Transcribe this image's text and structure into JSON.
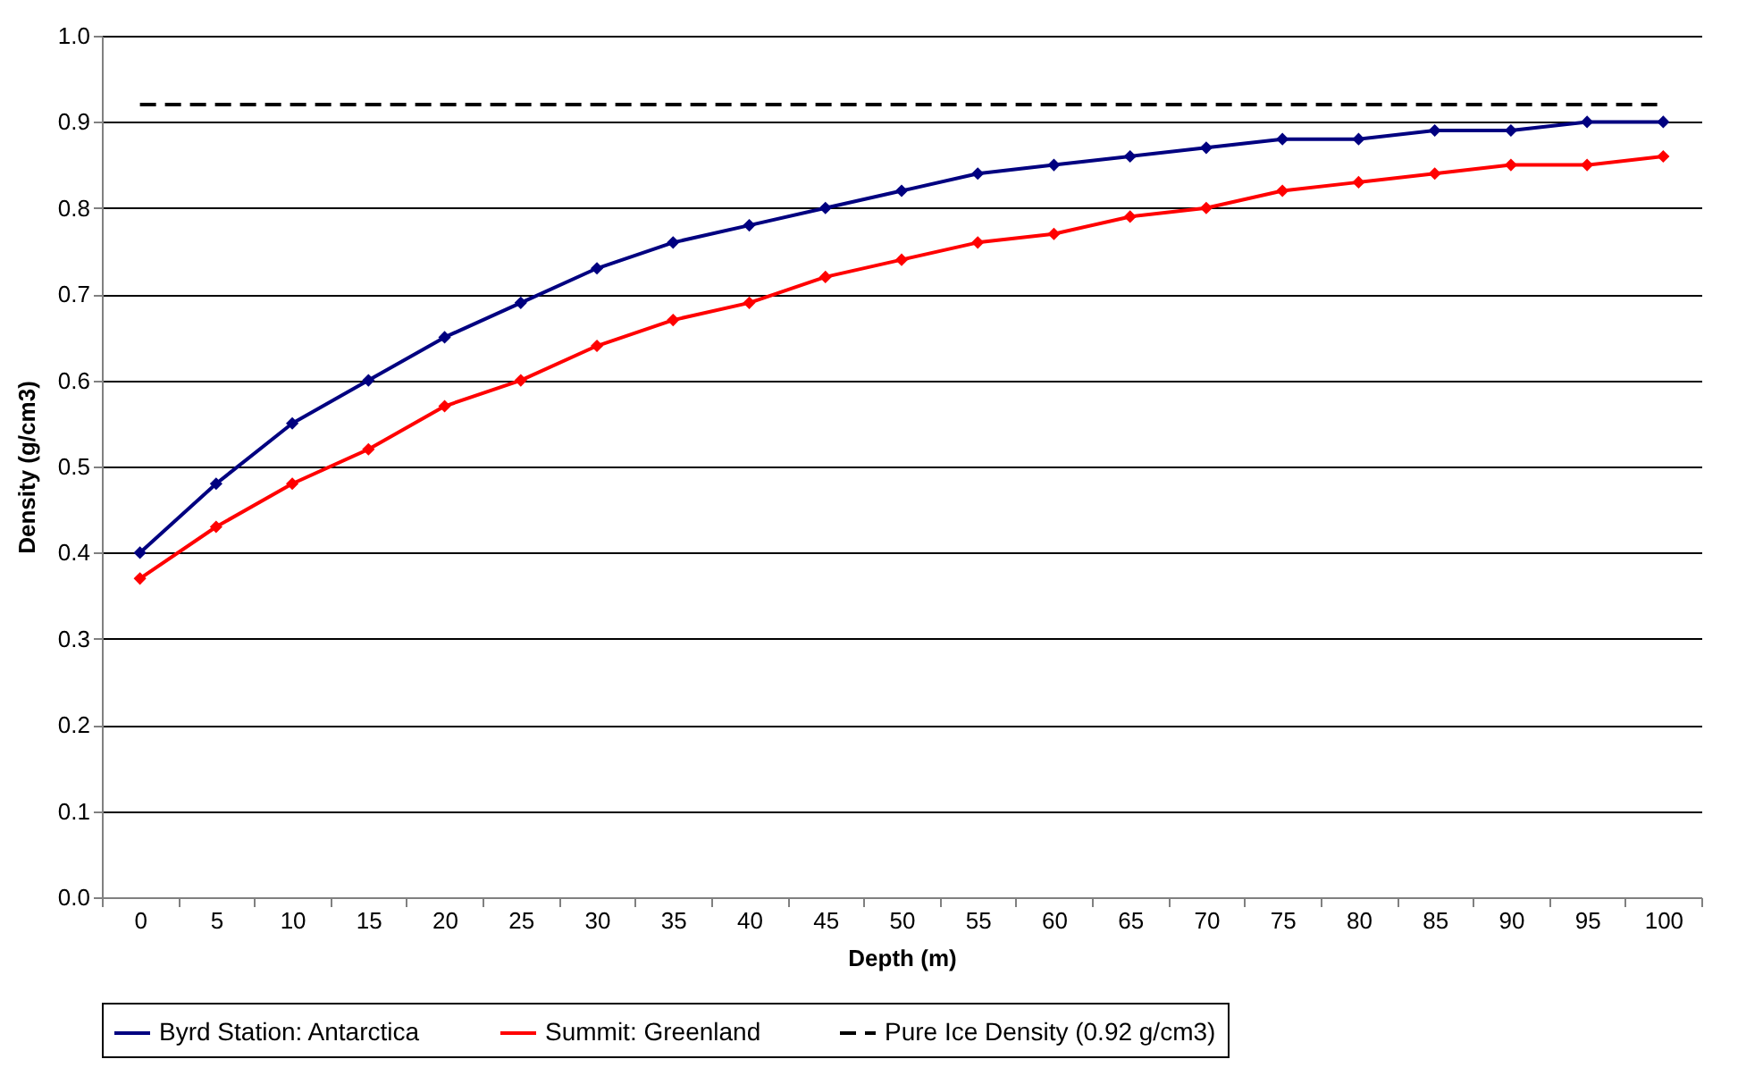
{
  "chart_data": {
    "type": "line",
    "xlabel": "Depth (m)",
    "ylabel": "Density (g/cm3)",
    "categories": [
      "0",
      "5",
      "10",
      "15",
      "20",
      "25",
      "30",
      "35",
      "40",
      "45",
      "50",
      "55",
      "60",
      "65",
      "70",
      "75",
      "80",
      "85",
      "90",
      "95",
      "100"
    ],
    "series": [
      {
        "name": "Byrd Station: Antarctica",
        "color": "#000080",
        "marker": "diamond",
        "line_style": "solid",
        "values": [
          0.4,
          0.48,
          0.55,
          0.6,
          0.65,
          0.69,
          0.73,
          0.76,
          0.78,
          0.8,
          0.82,
          0.84,
          0.85,
          0.86,
          0.87,
          0.88,
          0.88,
          0.89,
          0.89,
          0.9,
          0.9
        ]
      },
      {
        "name": "Summit: Greenland",
        "color": "#ff0000",
        "marker": "diamond",
        "line_style": "solid",
        "values": [
          0.37,
          0.43,
          0.48,
          0.52,
          0.57,
          0.6,
          0.64,
          0.67,
          0.69,
          0.72,
          0.74,
          0.76,
          0.77,
          0.79,
          0.8,
          0.82,
          0.83,
          0.84,
          0.85,
          0.85,
          0.86
        ]
      },
      {
        "name": "Pure Ice Density (0.92 g/cm3)",
        "color": "#000000",
        "marker": "none",
        "line_style": "dashed",
        "values": [
          0.92,
          0.92,
          0.92,
          0.92,
          0.92,
          0.92,
          0.92,
          0.92,
          0.92,
          0.92,
          0.92,
          0.92,
          0.92,
          0.92,
          0.92,
          0.92,
          0.92,
          0.92,
          0.92,
          0.92,
          0.92
        ]
      }
    ],
    "ylim": [
      0,
      1
    ],
    "yticks": [
      {
        "value": 0,
        "label": "0.0"
      },
      {
        "value": 0.1,
        "label": "0.1"
      },
      {
        "value": 0.2,
        "label": "0.2"
      },
      {
        "value": 0.3,
        "label": "0.3"
      },
      {
        "value": 0.4,
        "label": "0.4"
      },
      {
        "value": 0.5,
        "label": "0.5"
      },
      {
        "value": 0.6,
        "label": "0.6"
      },
      {
        "value": 0.7,
        "label": "0.7"
      },
      {
        "value": 0.8,
        "label": "0.8"
      },
      {
        "value": 0.9,
        "label": "0.9"
      },
      {
        "value": 1,
        "label": "1.0"
      }
    ],
    "grid": "y",
    "legend": "bottom"
  }
}
